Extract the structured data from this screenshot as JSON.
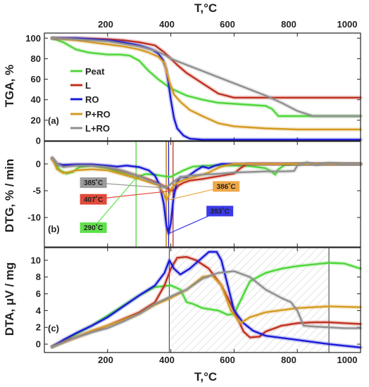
{
  "figure": {
    "x_title_top": "T,°C",
    "x_title_bottom": "T,°C",
    "x_ticks": [
      "200",
      "400",
      "600",
      "800",
      "1000"
    ]
  },
  "chart_data": [
    {
      "type": "line",
      "panel": "a",
      "panel_label": "(a)",
      "ylabel": "TGA, %",
      "xlim": [
        0,
        1000
      ],
      "ylim": [
        0,
        105
      ],
      "yticks": [
        0,
        20,
        40,
        60,
        80,
        100
      ],
      "legend": {
        "position": "left",
        "entries": [
          "Peat",
          "L",
          "RO",
          "P+RO",
          "L+RO"
        ]
      },
      "series": [
        {
          "name": "Peat",
          "color": "#4fd63a",
          "x": [
            25,
            60,
            100,
            140,
            200,
            240,
            270,
            300,
            330,
            360,
            400,
            450,
            500,
            550,
            600,
            650,
            700,
            720,
            740,
            800,
            900,
            1000
          ],
          "y": [
            100,
            96,
            89,
            86,
            84,
            84,
            83,
            78,
            68,
            60,
            51,
            44,
            40,
            37,
            36,
            35,
            34,
            31,
            24,
            24,
            24,
            24
          ]
        },
        {
          "name": "L",
          "color": "#c0301f",
          "x": [
            25,
            100,
            200,
            250,
            300,
            350,
            380,
            400,
            420,
            450,
            500,
            550,
            600,
            650,
            700,
            800,
            900,
            1000
          ],
          "y": [
            100,
            100,
            99,
            98,
            96,
            93,
            86,
            80,
            74,
            66,
            56,
            46,
            42,
            42,
            42,
            42,
            42,
            42
          ]
        },
        {
          "name": "RO",
          "color": "#1a1ad8",
          "x": [
            25,
            100,
            200,
            250,
            300,
            340,
            360,
            375,
            385,
            393,
            400,
            410,
            420,
            440,
            460,
            500,
            600,
            700,
            800,
            900,
            1000
          ],
          "y": [
            100,
            100,
            98,
            96,
            93,
            89,
            85,
            79,
            70,
            55,
            40,
            22,
            12,
            5,
            2,
            1,
            1,
            1,
            1,
            1,
            1
          ]
        },
        {
          "name": "P+RO",
          "color": "#d49a22",
          "x": [
            25,
            100,
            200,
            250,
            300,
            330,
            360,
            380,
            386,
            395,
            410,
            430,
            460,
            500,
            550,
            600,
            700,
            800,
            900,
            1000
          ],
          "y": [
            100,
            98,
            94,
            92,
            89,
            86,
            82,
            76,
            68,
            58,
            45,
            38,
            30,
            24,
            17,
            14,
            12,
            11,
            11,
            11
          ]
        },
        {
          "name": "L+RO",
          "color": "#8f8f8f",
          "x": [
            25,
            100,
            200,
            300,
            350,
            385,
            400,
            450,
            500,
            550,
            600,
            650,
            700,
            750,
            800,
            850,
            900,
            1000
          ],
          "y": [
            100,
            99,
            97,
            92,
            88,
            83,
            80,
            74,
            68,
            62,
            56,
            50,
            44,
            37,
            29,
            24,
            24,
            24
          ]
        }
      ]
    },
    {
      "type": "line",
      "panel": "b",
      "panel_label": "(b)",
      "ylabel": "DTG, % / min",
      "xlim": [
        0,
        1000
      ],
      "ylim": [
        -15.5,
        4.2
      ],
      "yticks": [
        -10,
        -5,
        0
      ],
      "vlines": [
        {
          "x": 290,
          "color": "#4fd63a"
        },
        {
          "x": 385,
          "color": "#8f8f8f"
        },
        {
          "x": 386,
          "color": "#d49a22"
        },
        {
          "x": 393,
          "color": "#1a1ad8"
        },
        {
          "x": 407,
          "color": "#c0301f"
        }
      ],
      "annotations": [
        {
          "text": "385˚C",
          "x": 155,
          "y": -3.5,
          "color": "#9a9a9a",
          "peak_x": 385,
          "peak_y": -4.5
        },
        {
          "text": "407˚C",
          "x": 155,
          "y": -6.6,
          "color": "#e14a3a",
          "peak_x": 407,
          "peak_y": -5.0
        },
        {
          "text": "386˚C",
          "x": 575,
          "y": -4.2,
          "color": "#eea84a",
          "peak_x": 386,
          "peak_y": -6.8
        },
        {
          "text": "393˚C",
          "x": 555,
          "y": -8.8,
          "color": "#3a3ae8",
          "peak_x": 393,
          "peak_y": -13.0
        },
        {
          "text": "290˚C",
          "x": 155,
          "y": -11.9,
          "color": "#5ee04a",
          "peak_x": 290,
          "peak_y": -2.6
        }
      ],
      "series": [
        {
          "name": "Peat",
          "color": "#4fd63a",
          "x": [
            25,
            35,
            50,
            70,
            90,
            110,
            150,
            200,
            250,
            280,
            290,
            300,
            320,
            350,
            380,
            400,
            420,
            440,
            470,
            520,
            600,
            650,
            700,
            720,
            730,
            740,
            760,
            800,
            900,
            1000
          ],
          "y": [
            1.0,
            0,
            -1.2,
            -1.8,
            -1.5,
            -0.6,
            -0.3,
            -0.8,
            -1.8,
            -2.4,
            -2.6,
            -2.3,
            -1.9,
            -2.0,
            -2.3,
            -2.4,
            -1.8,
            -1.2,
            -0.5,
            -0.3,
            -0.3,
            -0.4,
            -0.8,
            -1.5,
            -2.0,
            -1.0,
            -0.2,
            0,
            0,
            0
          ]
        },
        {
          "name": "L",
          "color": "#c0301f",
          "x": [
            25,
            40,
            60,
            100,
            150,
            200,
            250,
            300,
            330,
            360,
            380,
            395,
            407,
            415,
            425,
            440,
            460,
            500,
            550,
            600,
            620,
            640,
            700,
            800,
            900,
            1000
          ],
          "y": [
            1.0,
            0,
            -0.3,
            -0.2,
            -0.2,
            -0.6,
            -1.4,
            -2.3,
            -2.9,
            -3.6,
            -4.2,
            -4.8,
            -5.0,
            -4.7,
            -4.0,
            -3.5,
            -3.1,
            -2.8,
            -2.3,
            -1.8,
            -0.8,
            0,
            0,
            0,
            0,
            0
          ]
        },
        {
          "name": "RO",
          "color": "#1a1ad8",
          "x": [
            25,
            40,
            60,
            100,
            150,
            200,
            230,
            260,
            300,
            330,
            350,
            365,
            378,
            386,
            393,
            400,
            408,
            418,
            430,
            450,
            480,
            500,
            520,
            540,
            560,
            600,
            700,
            800,
            900,
            1000
          ],
          "y": [
            1.0,
            0,
            -0.2,
            -0.1,
            -0.1,
            -0.3,
            -0.5,
            -0.3,
            -0.6,
            -1.2,
            -2.2,
            -4.0,
            -7.5,
            -11.5,
            -13.0,
            -11.0,
            -6.5,
            -3.5,
            -2.5,
            -2.5,
            -1.2,
            -0.5,
            -0.8,
            -0.3,
            0,
            0,
            0,
            0,
            0,
            0
          ]
        },
        {
          "name": "P+RO",
          "color": "#d49a22",
          "x": [
            25,
            40,
            60,
            80,
            100,
            150,
            200,
            250,
            300,
            330,
            360,
            375,
            386,
            393,
            400,
            410,
            420,
            440,
            470,
            500,
            520,
            540,
            560,
            580,
            600,
            650,
            700,
            800,
            900,
            1000
          ],
          "y": [
            1.0,
            -1.0,
            -1.7,
            -1.5,
            -1.2,
            -1.0,
            -1.2,
            -2.0,
            -2.8,
            -3.4,
            -4.0,
            -5.2,
            -6.8,
            -6.0,
            -4.8,
            -4.0,
            -3.5,
            -3.0,
            -2.5,
            -2.0,
            -1.6,
            -1.0,
            -0.5,
            -0.2,
            0,
            0,
            0,
            0,
            0,
            0
          ]
        },
        {
          "name": "L+RO",
          "color": "#8f8f8f",
          "x": [
            25,
            40,
            60,
            100,
            150,
            200,
            250,
            300,
            340,
            370,
            385,
            395,
            405,
            420,
            440,
            460,
            500,
            560,
            600,
            650,
            700,
            760,
            790,
            800,
            830,
            860,
            900,
            950,
            1000
          ],
          "y": [
            1.2,
            0,
            -0.6,
            -0.3,
            -0.3,
            -0.6,
            -1.3,
            -2.3,
            -3.3,
            -4.0,
            -4.5,
            -4.0,
            -3.5,
            -2.8,
            -2.4,
            -2.2,
            -2.0,
            -1.8,
            -1.6,
            -1.5,
            -1.4,
            -1.4,
            -1.3,
            -0.3,
            0.3,
            -0.2,
            0.2,
            0,
            0
          ]
        }
      ]
    },
    {
      "type": "line",
      "panel": "c",
      "panel_label": "(c)",
      "ylabel": "DTA, μV / mg",
      "xlabel": "T,°C",
      "xlim": [
        0,
        1000
      ],
      "ylim": [
        -1,
        11.5
      ],
      "yticks": [
        0,
        2,
        4,
        6,
        8,
        10
      ],
      "shaded_region": [
        395,
        900
      ],
      "series": [
        {
          "name": "Peat",
          "color": "#4fd63a",
          "x": [
            25,
            60,
            100,
            150,
            200,
            250,
            300,
            350,
            400,
            430,
            450,
            470,
            500,
            550,
            580,
            600,
            650,
            700,
            750,
            800,
            850,
            900,
            950,
            1000
          ],
          "y": [
            -0.3,
            0.3,
            1.2,
            2.2,
            3.4,
            4.6,
            5.8,
            6.8,
            7.0,
            6.5,
            5.0,
            4.8,
            4.3,
            4.0,
            3.5,
            3.6,
            7.5,
            8.5,
            9.0,
            9.3,
            9.5,
            9.7,
            9.6,
            9.0
          ]
        },
        {
          "name": "L",
          "color": "#c0301f",
          "x": [
            25,
            60,
            100,
            150,
            200,
            250,
            300,
            350,
            380,
            400,
            420,
            450,
            480,
            520,
            560,
            600,
            630,
            650,
            680,
            700,
            750,
            800,
            850,
            900,
            950,
            1000
          ],
          "y": [
            -0.3,
            0.3,
            0.8,
            1.5,
            2.2,
            3.0,
            3.8,
            5.0,
            7.0,
            9.0,
            10.3,
            10.4,
            10.0,
            9.0,
            7.0,
            4.0,
            1.5,
            0.8,
            0.9,
            1.5,
            2.2,
            2.5,
            2.6,
            2.6,
            2.5,
            2.4
          ]
        },
        {
          "name": "RO",
          "color": "#1a1ad8",
          "x": [
            25,
            60,
            100,
            150,
            200,
            250,
            300,
            350,
            380,
            395,
            410,
            430,
            460,
            490,
            520,
            545,
            560,
            580,
            600,
            630,
            660,
            700,
            800,
            900,
            1000
          ],
          "y": [
            -0.3,
            0.5,
            1.3,
            2.2,
            3.2,
            4.5,
            5.8,
            7.0,
            8.5,
            10.0,
            9.0,
            8.3,
            9.0,
            10.0,
            11.0,
            11.0,
            10.0,
            7.0,
            4.0,
            2.5,
            1.6,
            1.0,
            0.5,
            0.0,
            -0.4
          ]
        },
        {
          "name": "P+RO",
          "color": "#d49a22",
          "x": [
            25,
            60,
            100,
            150,
            200,
            250,
            300,
            350,
            400,
            450,
            500,
            530,
            560,
            590,
            620,
            650,
            700,
            800,
            900,
            1000
          ],
          "y": [
            -0.3,
            0.2,
            0.8,
            1.6,
            2.2,
            2.9,
            3.6,
            4.7,
            5.5,
            6.5,
            8.0,
            8.2,
            7.0,
            4.0,
            2.5,
            3.2,
            3.8,
            4.3,
            4.5,
            4.4
          ]
        },
        {
          "name": "L+RO",
          "color": "#8f8f8f",
          "x": [
            25,
            60,
            100,
            150,
            200,
            250,
            300,
            350,
            400,
            450,
            500,
            550,
            600,
            650,
            700,
            750,
            780,
            800,
            820,
            850,
            900,
            950,
            1000
          ],
          "y": [
            -0.3,
            0.2,
            0.8,
            1.4,
            1.9,
            2.7,
            3.6,
            4.8,
            5.7,
            6.5,
            7.8,
            8.5,
            8.7,
            8.0,
            6.5,
            5.5,
            5.0,
            4.0,
            2.2,
            2.1,
            2.0,
            1.9,
            1.9
          ]
        }
      ]
    }
  ]
}
